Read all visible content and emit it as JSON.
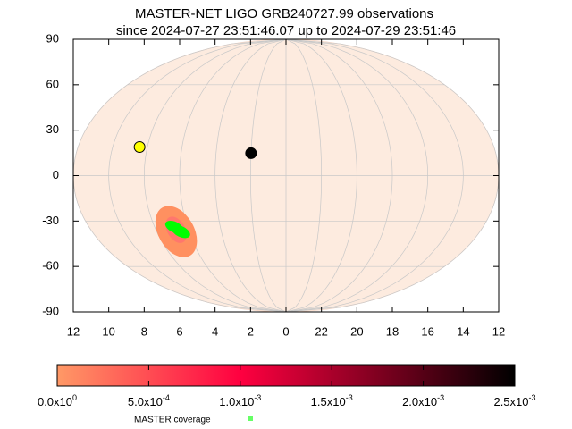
{
  "chart_data": {
    "type": "skymap",
    "title": [
      "MASTER-NET LIGO GRB240727.99 observations",
      "since 2024-07-27 23:51:46.07 up to 2024-07-29 23:51:46"
    ],
    "xlim": [
      12,
      -12
    ],
    "xticks": [
      12,
      10,
      8,
      6,
      4,
      2,
      0,
      {
        "value": -2,
        "label": "22"
      },
      {
        "value": -4,
        "label": "20"
      },
      {
        "value": -6,
        "label": "18"
      },
      {
        "value": -8,
        "label": "16"
      },
      {
        "value": -10,
        "label": "14"
      },
      {
        "value": -12,
        "label": "12"
      }
    ],
    "ylim": [
      -90,
      90
    ],
    "yticks": [
      90,
      60,
      30,
      0,
      -30,
      -60,
      -90
    ],
    "grid": true,
    "series": [
      {
        "name": "MASTER coverage",
        "color": "#00ff00",
        "x": [
          6.8,
          6.5
        ],
        "y": [
          -34,
          -37
        ]
      }
    ],
    "points": {
      "x": [
        8.45,
        2.0
      ],
      "y": [
        18.9,
        14.8
      ],
      "colors": [
        "#ffff00",
        "#000000"
      ]
    },
    "colorbar": {
      "lim": [
        0,
        0.0025
      ],
      "colors": [
        "#ff9966",
        "#ff0040",
        "#000000"
      ],
      "ticks": [
        {
          "value": 0,
          "label": "0.0x10",
          "exp": "0"
        },
        {
          "value": 0.0005,
          "label": "5.0x10",
          "exp": "-4"
        },
        {
          "value": 0.001,
          "label": "1.0x10",
          "exp": "-3"
        },
        {
          "value": 0.0015,
          "label": "1.5x10",
          "exp": "-3"
        },
        {
          "value": 0.002,
          "label": "2.0x10",
          "exp": "-3"
        },
        {
          "value": 0.0025,
          "label": "2.5x10",
          "exp": "-3"
        }
      ]
    }
  }
}
